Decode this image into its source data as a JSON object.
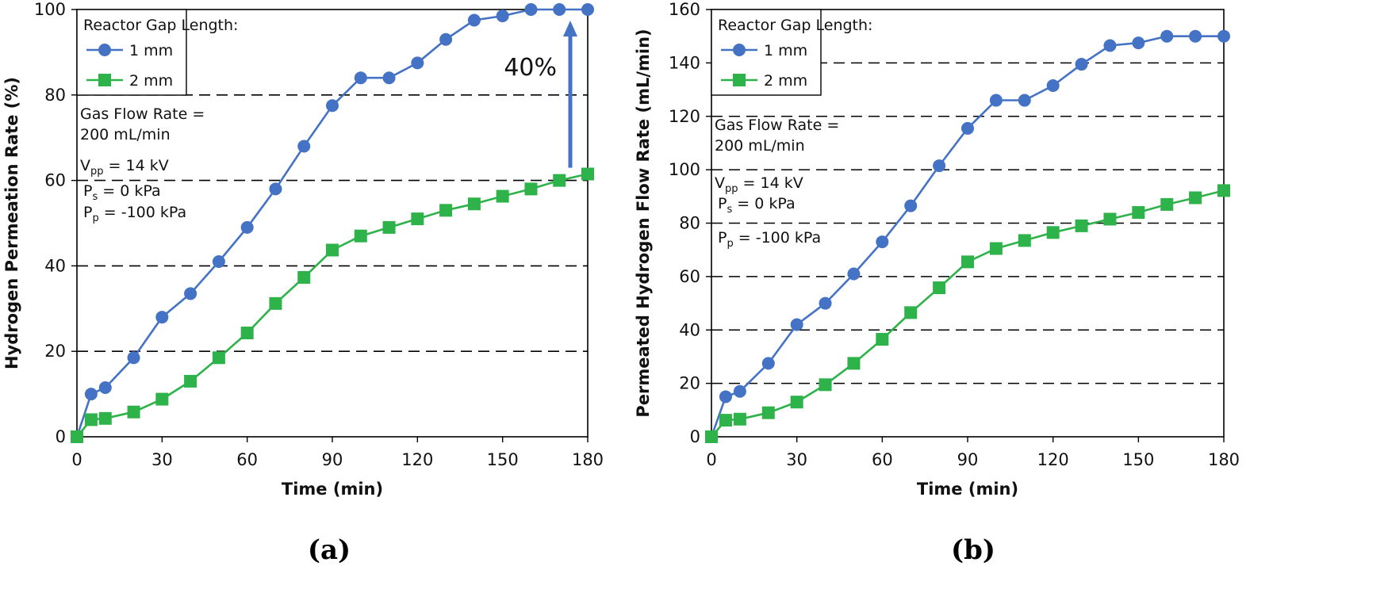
{
  "chart_data": [
    {
      "type": "line",
      "panel_label": "(a)",
      "xlabel": "Time (min)",
      "ylabel": "Hydrogen Permeation Rate (%)",
      "xlim": [
        0,
        180
      ],
      "ylim": [
        0,
        100
      ],
      "xticks": [
        0,
        30,
        60,
        90,
        120,
        150,
        180
      ],
      "yticks": [
        0,
        20,
        40,
        60,
        80,
        100
      ],
      "grid": "horizontal dashed",
      "legend_title": "Reactor Gap Length:",
      "legend_position": "top-left",
      "series": [
        {
          "name": "1 mm",
          "marker": "circle",
          "color": "#4472C4",
          "x": [
            0,
            5,
            10,
            20,
            30,
            40,
            50,
            60,
            70,
            80,
            90,
            100,
            110,
            120,
            130,
            140,
            150,
            160,
            170,
            180
          ],
          "y": [
            0,
            10,
            11.5,
            18.5,
            28,
            33.5,
            41,
            49,
            58,
            68,
            77.5,
            84,
            84,
            87.5,
            93,
            97.5,
            98.5,
            100,
            100,
            100
          ]
        },
        {
          "name": "2 mm",
          "marker": "square",
          "color": "#2EB24A",
          "x": [
            0,
            5,
            10,
            20,
            30,
            40,
            50,
            60,
            70,
            80,
            90,
            100,
            110,
            120,
            130,
            140,
            150,
            160,
            170,
            180
          ],
          "y": [
            0,
            4,
            4.3,
            5.8,
            8.8,
            13,
            18.5,
            24.3,
            31.2,
            37.3,
            43.7,
            47,
            49,
            51,
            53,
            54.5,
            56.3,
            58,
            60,
            61.5
          ]
        }
      ],
      "annotations": {
        "gas_flow_1": "Gas Flow Rate =",
        "gas_flow_2": "200 mL/min",
        "vpp_main": "V",
        "vpp_sub": "pp",
        "vpp_rest": " = 14 kV",
        "ps_main": "P",
        "ps_sub": "s",
        "ps_rest": " = 0 kPa",
        "pp_main": "P",
        "pp_sub": "p",
        "pp_rest": " = -100 kPa",
        "arrow_label": "40%"
      }
    },
    {
      "type": "line",
      "panel_label": "(b)",
      "xlabel": "Time (min)",
      "ylabel": "Permeated Hydrogen Flow Rate (mL/min)",
      "xlim": [
        0,
        180
      ],
      "ylim": [
        0,
        160
      ],
      "xticks": [
        0,
        30,
        60,
        90,
        120,
        150,
        180
      ],
      "yticks": [
        0,
        20,
        40,
        60,
        80,
        100,
        120,
        140,
        160
      ],
      "grid": "horizontal dashed",
      "legend_title": "Reactor Gap Length:",
      "legend_position": "top-left",
      "series": [
        {
          "name": "1 mm",
          "marker": "circle",
          "color": "#4472C4",
          "x": [
            0,
            5,
            10,
            20,
            30,
            40,
            50,
            60,
            70,
            80,
            90,
            100,
            110,
            120,
            130,
            140,
            150,
            160,
            170,
            180
          ],
          "y": [
            0,
            15,
            17,
            27.5,
            42,
            50,
            61,
            73,
            86.5,
            101.5,
            115.5,
            126,
            126,
            131.5,
            139.5,
            146.5,
            147.5,
            150,
            150,
            150
          ]
        },
        {
          "name": "2 mm",
          "marker": "square",
          "color": "#2EB24A",
          "x": [
            0,
            5,
            10,
            20,
            30,
            40,
            50,
            60,
            70,
            80,
            90,
            100,
            110,
            120,
            130,
            140,
            150,
            160,
            170,
            180
          ],
          "y": [
            0,
            6.2,
            6.6,
            9,
            13,
            19.5,
            27.5,
            36.5,
            46.5,
            55.8,
            65.5,
            70.5,
            73.5,
            76.5,
            79,
            81.5,
            84,
            87,
            89.5,
            92.2
          ]
        }
      ],
      "annotations": {
        "gas_flow_1": "Gas Flow Rate =",
        "gas_flow_2": "200 mL/min",
        "vpp_main": "V",
        "vpp_sub": "pp",
        "vpp_rest": " = 14 kV",
        "ps_main": "P",
        "ps_sub": "s",
        "ps_rest": " = 0 kPa",
        "pp_main": "P",
        "pp_sub": "p",
        "pp_rest": " = -100 kPa"
      }
    }
  ]
}
